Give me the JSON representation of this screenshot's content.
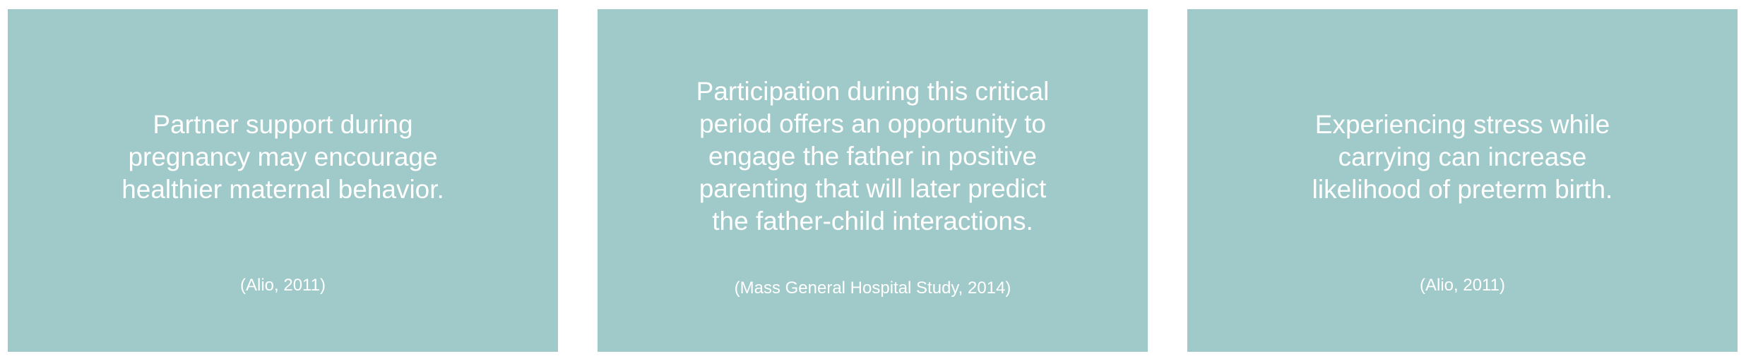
{
  "colors": {
    "card_background": "#a0c9c9",
    "text": "#ffffff",
    "page_background": "#ffffff"
  },
  "cards": [
    {
      "quote_lines": [
        "Partner support during",
        "pregnancy may encourage",
        "healthier maternal behavior."
      ],
      "citation": "(Alio, 2011)"
    },
    {
      "quote_lines": [
        "Participation during this critical",
        "period offers an opportunity to",
        "engage the father in positive",
        "parenting that will later predict",
        "the father-child interactions."
      ],
      "citation": "(Mass General Hospital Study, 2014)"
    },
    {
      "quote_lines": [
        "Experiencing stress while",
        "carrying can increase",
        "likelihood of preterm birth."
      ],
      "citation": "(Alio, 2011)"
    }
  ]
}
